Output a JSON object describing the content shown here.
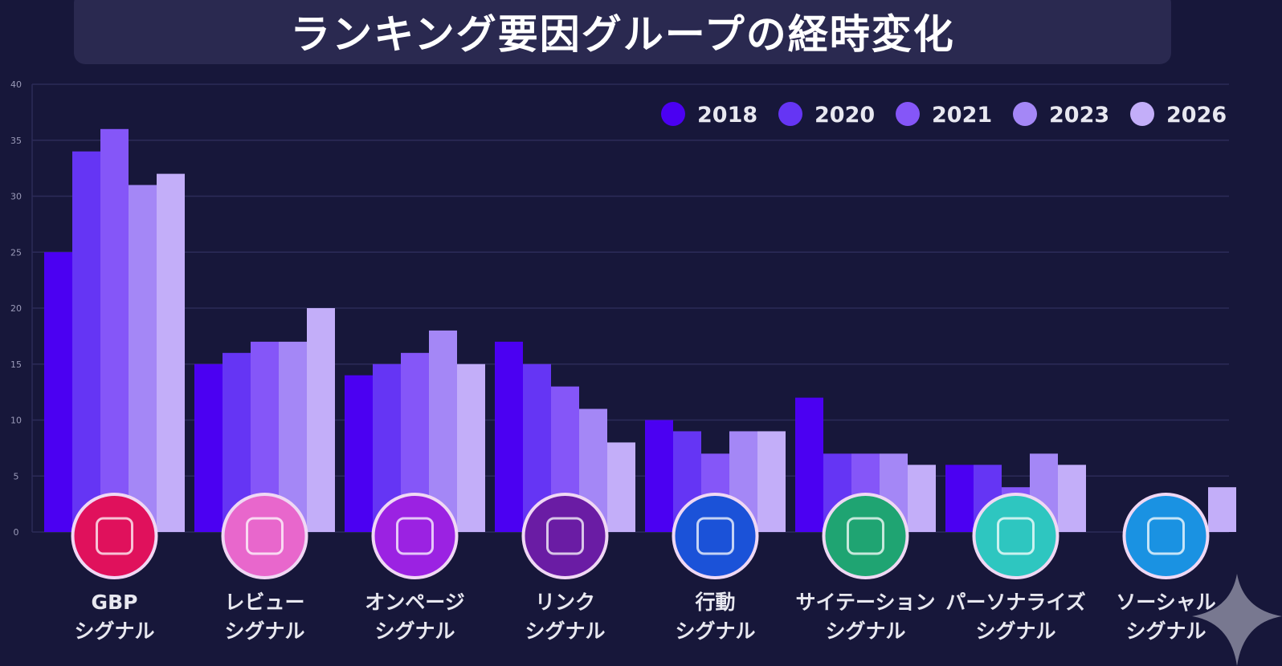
{
  "chart_data": {
    "type": "bar",
    "title": "ランキング要因グループの経時変化",
    "categories": [
      "GBP\nシグナル",
      "レビュー\nシグナル",
      "オンページ\nシグナル",
      "リンク\nシグナル",
      "行動\nシグナル",
      "サイテーション\nシグナル",
      "パーソナライズ\nシグナル",
      "ソーシャル\nシグナル"
    ],
    "series": [
      {
        "name": "2018",
        "color": "#4b00f2",
        "values": [
          25,
          15,
          14,
          17,
          10,
          12,
          6,
          0
        ]
      },
      {
        "name": "2020",
        "color": "#6535f4",
        "values": [
          34,
          16,
          15,
          15,
          9,
          7,
          6,
          0
        ]
      },
      {
        "name": "2021",
        "color": "#8556f8",
        "values": [
          36,
          17,
          16,
          13,
          7,
          7,
          4,
          0
        ]
      },
      {
        "name": "2023",
        "color": "#a487f6",
        "values": [
          31,
          17,
          18,
          11,
          9,
          7,
          7,
          0
        ]
      },
      {
        "name": "2026",
        "color": "#c3aef9",
        "values": [
          32,
          20,
          15,
          8,
          9,
          6,
          6,
          4
        ]
      }
    ],
    "yticks": [
      "0",
      "5",
      "10",
      "15",
      "20",
      "25",
      "30",
      "35",
      "40"
    ],
    "ylim": [
      0,
      40
    ],
    "grid": true,
    "legend": "top-right",
    "icons": [
      {
        "name": "storefront-icon",
        "color": "#e0115c"
      },
      {
        "name": "review-chat-icon",
        "color": "#e867cc"
      },
      {
        "name": "webpage-icon",
        "color": "#9b22e2"
      },
      {
        "name": "network-icon",
        "color": "#6a1ca4"
      },
      {
        "name": "mobile-document-icon",
        "color": "#1b52d8"
      },
      {
        "name": "browser-icon",
        "color": "#1fa472"
      },
      {
        "name": "person-location-icon",
        "color": "#2ec6c0"
      },
      {
        "name": "heart-chat-icon",
        "color": "#1a92e2"
      }
    ]
  }
}
